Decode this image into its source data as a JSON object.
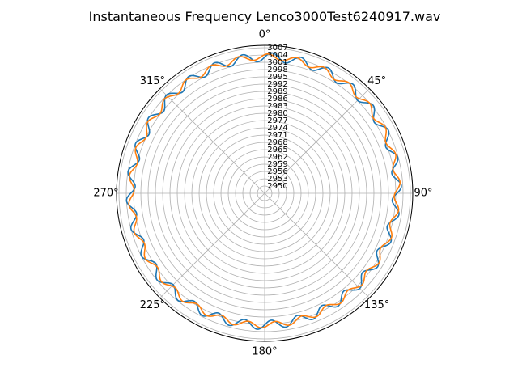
{
  "chart_data": {
    "type": "line",
    "projection": "polar",
    "title": "Instantaneous Frequency  Lenco3000Test6240917.wav",
    "theta_zero_location": "N",
    "theta_direction": "clockwise",
    "theta_ticks": [
      0,
      45,
      90,
      135,
      180,
      225,
      270,
      315
    ],
    "theta_tick_labels": [
      "0°",
      "45°",
      "90°",
      "135°",
      "180°",
      "225°",
      "270°",
      "315°"
    ],
    "rlim": [
      2947,
      3008
    ],
    "r_ticks": [
      2950,
      2953,
      2956,
      2959,
      2962,
      2965,
      2968,
      2971,
      2974,
      2977,
      2980,
      2983,
      2986,
      2989,
      2992,
      2995,
      2998,
      3001,
      3004,
      3007
    ],
    "r_tick_labels": [
      "2950",
      "2953",
      "2956",
      "2959",
      "2962",
      "2965",
      "2968",
      "2971",
      "2974",
      "2977",
      "2980",
      "2983",
      "2986",
      "2989",
      "2992",
      "2995",
      "2998",
      "3001",
      "3004",
      "3007"
    ],
    "grid": true,
    "series": [
      {
        "color": "#1f77b4",
        "baseline": 3002.0,
        "components": [
          {
            "amplitude": 1.8,
            "cycles_per_rev": 30,
            "phase_deg": 0
          },
          {
            "amplitude": 1.0,
            "cycles_per_rev": 1,
            "phase_deg": 110
          },
          {
            "amplitude": 0.5,
            "cycles_per_rev": 2,
            "phase_deg": 20
          }
        ]
      },
      {
        "color": "#ff7f0e",
        "baseline": 3002.0,
        "components": [
          {
            "amplitude": 1.2,
            "cycles_per_rev": 30,
            "phase_deg": 50
          },
          {
            "amplitude": 1.0,
            "cycles_per_rev": 1,
            "phase_deg": 100
          },
          {
            "amplitude": 0.4,
            "cycles_per_rev": 2,
            "phase_deg": 35
          }
        ]
      }
    ]
  }
}
